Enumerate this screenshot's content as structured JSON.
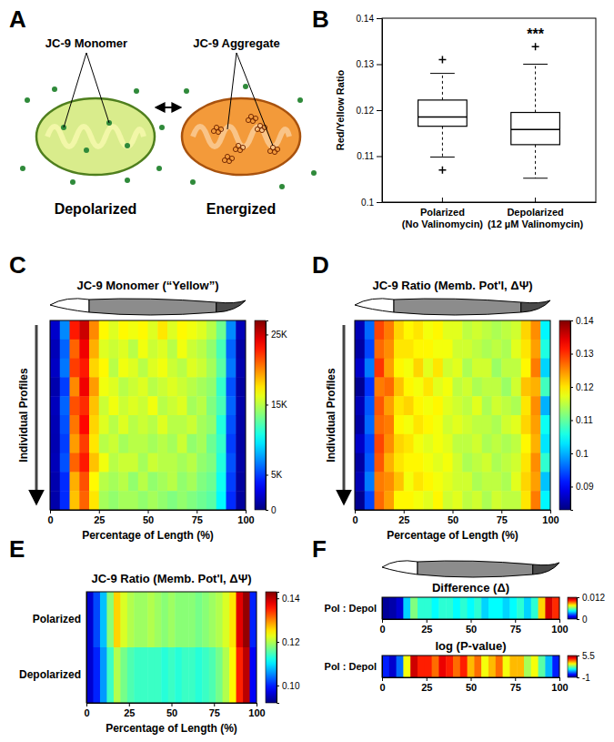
{
  "diagram": {
    "panel": "A",
    "monomer_label": "JC-9 Monomer",
    "aggregate_label": "JC-9 Aggregate",
    "left_state": "Depolarized",
    "right_state": "Energized"
  },
  "chart_data": [
    {
      "type": "box",
      "panel": "B",
      "ylabel": "Red/Yellow Ratio",
      "categories": [
        "Polarized\n(No Valinomycin)",
        "Depolarized\n(12 µM Valinomycin)"
      ],
      "boxes": [
        {
          "whislo": 0.1098,
          "q1": 0.1165,
          "med": 0.1185,
          "q3": 0.1222,
          "whishi": 0.128,
          "fliers": [
            0.107,
            0.131
          ]
        },
        {
          "whislo": 0.1052,
          "q1": 0.1125,
          "med": 0.1158,
          "q3": 0.1195,
          "whishi": 0.13,
          "fliers": [
            0.1338
          ]
        }
      ],
      "ylim": [
        0.1,
        0.14
      ],
      "yticks": [
        0.1,
        0.11,
        0.12,
        0.13,
        0.14
      ],
      "grid": false,
      "annotations": [
        "***"
      ]
    },
    {
      "type": "heatmap",
      "panel": "C",
      "title": "JC-9 Monomer (“Yellow”)",
      "xlabel": "Percentage of Length (%)",
      "ylabel": "Individual Profiles",
      "xlim": [
        0,
        100
      ],
      "xticks": [
        0,
        25,
        50,
        75,
        100
      ],
      "tick_labels": "x",
      "cells": [
        [
          2000,
          7000,
          23000,
          25000,
          20000,
          17000,
          16000,
          17000,
          16500,
          17000,
          16000,
          17500,
          16000,
          17000,
          16500,
          16000,
          15000,
          13000,
          7000,
          1500
        ],
        [
          1500,
          6000,
          21000,
          24000,
          19000,
          16000,
          15500,
          16000,
          15000,
          16500,
          15500,
          16000,
          15000,
          16500,
          15500,
          15000,
          14000,
          12000,
          6000,
          1000
        ],
        [
          1800,
          6500,
          22000,
          23000,
          18000,
          17000,
          15000,
          16500,
          16000,
          15000,
          16000,
          16500,
          15500,
          15000,
          16000,
          15500,
          14500,
          12500,
          6500,
          1200
        ],
        [
          1200,
          5000,
          20000,
          24000,
          19500,
          16500,
          16000,
          15000,
          15500,
          16000,
          15000,
          15500,
          16000,
          15500,
          15000,
          14500,
          14000,
          11500,
          5500,
          900
        ],
        [
          1600,
          6000,
          21500,
          22500,
          18500,
          15500,
          16500,
          15500,
          16000,
          15500,
          16500,
          15000,
          15500,
          16000,
          14500,
          15000,
          13500,
          12000,
          6000,
          1100
        ],
        [
          1400,
          5500,
          20500,
          23500,
          18000,
          16000,
          15000,
          16000,
          15000,
          15500,
          15000,
          16000,
          15000,
          15000,
          15500,
          14500,
          14000,
          11000,
          5500,
          1000
        ],
        [
          1300,
          5000,
          19500,
          22000,
          17500,
          15000,
          15500,
          14500,
          15000,
          15000,
          14500,
          15000,
          14500,
          15500,
          14000,
          14500,
          13000,
          11500,
          5000,
          900
        ],
        [
          1500,
          5500,
          21000,
          23000,
          18500,
          16500,
          15000,
          15500,
          15500,
          14500,
          15500,
          15000,
          15000,
          14500,
          15000,
          14000,
          13500,
          11000,
          5500,
          1000
        ],
        [
          1200,
          4500,
          19000,
          21500,
          17000,
          15000,
          14500,
          15000,
          14000,
          15000,
          14000,
          14500,
          15000,
          14000,
          14500,
          13500,
          13000,
          10500,
          5000,
          800
        ],
        [
          1100,
          4500,
          18500,
          21000,
          17500,
          14500,
          14000,
          14500,
          14500,
          14000,
          14500,
          14000,
          13500,
          14000,
          13500,
          13000,
          12500,
          10000,
          4500,
          800
        ]
      ],
      "colorbar_lim": [
        0,
        27000
      ],
      "colorbar_ticks": [
        0,
        {
          "value": 5000,
          "label": "5K"
        },
        {
          "value": 15000,
          "label": "15K"
        },
        {
          "value": 25000,
          "label": "25K"
        }
      ]
    },
    {
      "type": "heatmap",
      "panel": "D",
      "title": "JC-9 Ratio (Memb. Pot'l, ΔΨ)",
      "xlabel": "Percentage of Length (%)",
      "ylabel": "Individual Profiles",
      "xlim": [
        0,
        100
      ],
      "xticks": [
        0,
        25,
        50,
        75,
        100
      ],
      "tick_labels": "x",
      "cells": [
        [
          0.086,
          0.096,
          0.129,
          0.126,
          0.121,
          0.119,
          0.12,
          0.118,
          0.119,
          0.117,
          0.117,
          0.115,
          0.116,
          0.115,
          0.114,
          0.115,
          0.116,
          0.121,
          0.125,
          0.104
        ],
        [
          0.085,
          0.094,
          0.127,
          0.125,
          0.12,
          0.12,
          0.119,
          0.119,
          0.118,
          0.118,
          0.116,
          0.116,
          0.115,
          0.114,
          0.115,
          0.114,
          0.117,
          0.12,
          0.124,
          0.106
        ],
        [
          0.087,
          0.097,
          0.13,
          0.124,
          0.119,
          0.118,
          0.121,
          0.117,
          0.12,
          0.116,
          0.117,
          0.114,
          0.116,
          0.116,
          0.113,
          0.115,
          0.115,
          0.119,
          0.126,
          0.102
        ],
        [
          0.084,
          0.093,
          0.126,
          0.127,
          0.122,
          0.119,
          0.118,
          0.12,
          0.117,
          0.118,
          0.115,
          0.116,
          0.114,
          0.115,
          0.115,
          0.113,
          0.116,
          0.122,
          0.123,
          0.108
        ],
        [
          0.086,
          0.095,
          0.128,
          0.124,
          0.12,
          0.121,
          0.119,
          0.118,
          0.119,
          0.117,
          0.116,
          0.115,
          0.117,
          0.114,
          0.116,
          0.115,
          0.114,
          0.12,
          0.125,
          0.1
        ],
        [
          0.085,
          0.096,
          0.127,
          0.126,
          0.119,
          0.118,
          0.12,
          0.119,
          0.118,
          0.116,
          0.117,
          0.116,
          0.115,
          0.115,
          0.114,
          0.116,
          0.117,
          0.121,
          0.124,
          0.105
        ],
        [
          0.087,
          0.094,
          0.129,
          0.125,
          0.121,
          0.12,
          0.118,
          0.117,
          0.118,
          0.117,
          0.115,
          0.115,
          0.116,
          0.114,
          0.115,
          0.114,
          0.115,
          0.119,
          0.123,
          0.103
        ],
        [
          0.085,
          0.095,
          0.128,
          0.123,
          0.12,
          0.119,
          0.119,
          0.118,
          0.117,
          0.118,
          0.116,
          0.114,
          0.115,
          0.116,
          0.114,
          0.115,
          0.116,
          0.12,
          0.125,
          0.107
        ],
        [
          0.086,
          0.097,
          0.126,
          0.125,
          0.122,
          0.118,
          0.12,
          0.119,
          0.118,
          0.117,
          0.116,
          0.116,
          0.114,
          0.115,
          0.115,
          0.114,
          0.117,
          0.121,
          0.124,
          0.101
        ],
        [
          0.084,
          0.094,
          0.127,
          0.124,
          0.119,
          0.119,
          0.118,
          0.117,
          0.119,
          0.116,
          0.117,
          0.115,
          0.116,
          0.114,
          0.116,
          0.115,
          0.115,
          0.12,
          0.126,
          0.104
        ]
      ],
      "colorbar_lim": [
        0.083,
        0.14
      ],
      "colorbar_ticks": [
        0.09,
        0.1,
        0.11,
        0.12,
        0.13,
        0.14
      ]
    },
    {
      "type": "heatmap",
      "panel": "E",
      "title": "JC-9 Ratio (Memb. Pot'l, ΔΨ)",
      "xlabel": "Percentage of Length (%)",
      "categories": [
        "Polarized",
        "Depolarized"
      ],
      "xlim": [
        0,
        100
      ],
      "xticks": [
        0,
        25,
        50,
        75,
        100
      ],
      "cells": [
        [
          0.096,
          0.102,
          0.108,
          0.118,
          0.126,
          0.122,
          0.12,
          0.119,
          0.119,
          0.12,
          0.119,
          0.118,
          0.119,
          0.118,
          0.118,
          0.118,
          0.117,
          0.118,
          0.119,
          0.12,
          0.122,
          0.125,
          0.138,
          0.142,
          0.1
        ],
        [
          0.096,
          0.1,
          0.106,
          0.114,
          0.12,
          0.117,
          0.115,
          0.114,
          0.114,
          0.114,
          0.114,
          0.113,
          0.114,
          0.113,
          0.114,
          0.114,
          0.113,
          0.114,
          0.115,
          0.117,
          0.12,
          0.124,
          0.135,
          0.14,
          0.098
        ]
      ],
      "colorbar_lim": [
        0.092,
        0.143
      ],
      "colorbar_ticks": [
        {
          "value": 0.1,
          "label": "0.10"
        },
        0.12,
        0.14
      ]
    },
    {
      "type": "heatmap",
      "panel": "F",
      "title": "Difference (Δ)",
      "categories": [
        "Pol : Depol"
      ],
      "xlim": [
        0,
        100
      ],
      "xticks": [
        0,
        25,
        50,
        75,
        100
      ],
      "cells": [
        [
          0.0003,
          0.0005,
          0.001,
          0.004,
          0.006,
          0.005,
          0.005,
          0.0045,
          0.005,
          0.005,
          0.0045,
          0.005,
          0.0045,
          0.005,
          0.004,
          0.0045,
          0.0045,
          0.004,
          0.0045,
          0.005,
          0.004,
          0.005,
          0.008,
          0.011,
          0.01
        ]
      ],
      "colorbar_lim": [
        0,
        0.012
      ],
      "colorbar_ticks": [
        0,
        0.012
      ]
    },
    {
      "type": "heatmap",
      "title": "log (P-value)",
      "categories": [
        "Pol : Depol"
      ],
      "xlim": [
        0,
        100
      ],
      "xticks": [
        0,
        25,
        50,
        75,
        100
      ],
      "cells": [
        [
          0,
          -0.5,
          0.5,
          3,
          5,
          4.5,
          4.5,
          4,
          4.8,
          4.5,
          4,
          4.5,
          3.5,
          4,
          3,
          3.5,
          4,
          3,
          3.5,
          3.5,
          2.5,
          3,
          2,
          1,
          0
        ]
      ],
      "colorbar_lim": [
        -1,
        5.5
      ],
      "colorbar_ticks": [
        -1,
        5.5
      ]
    }
  ]
}
